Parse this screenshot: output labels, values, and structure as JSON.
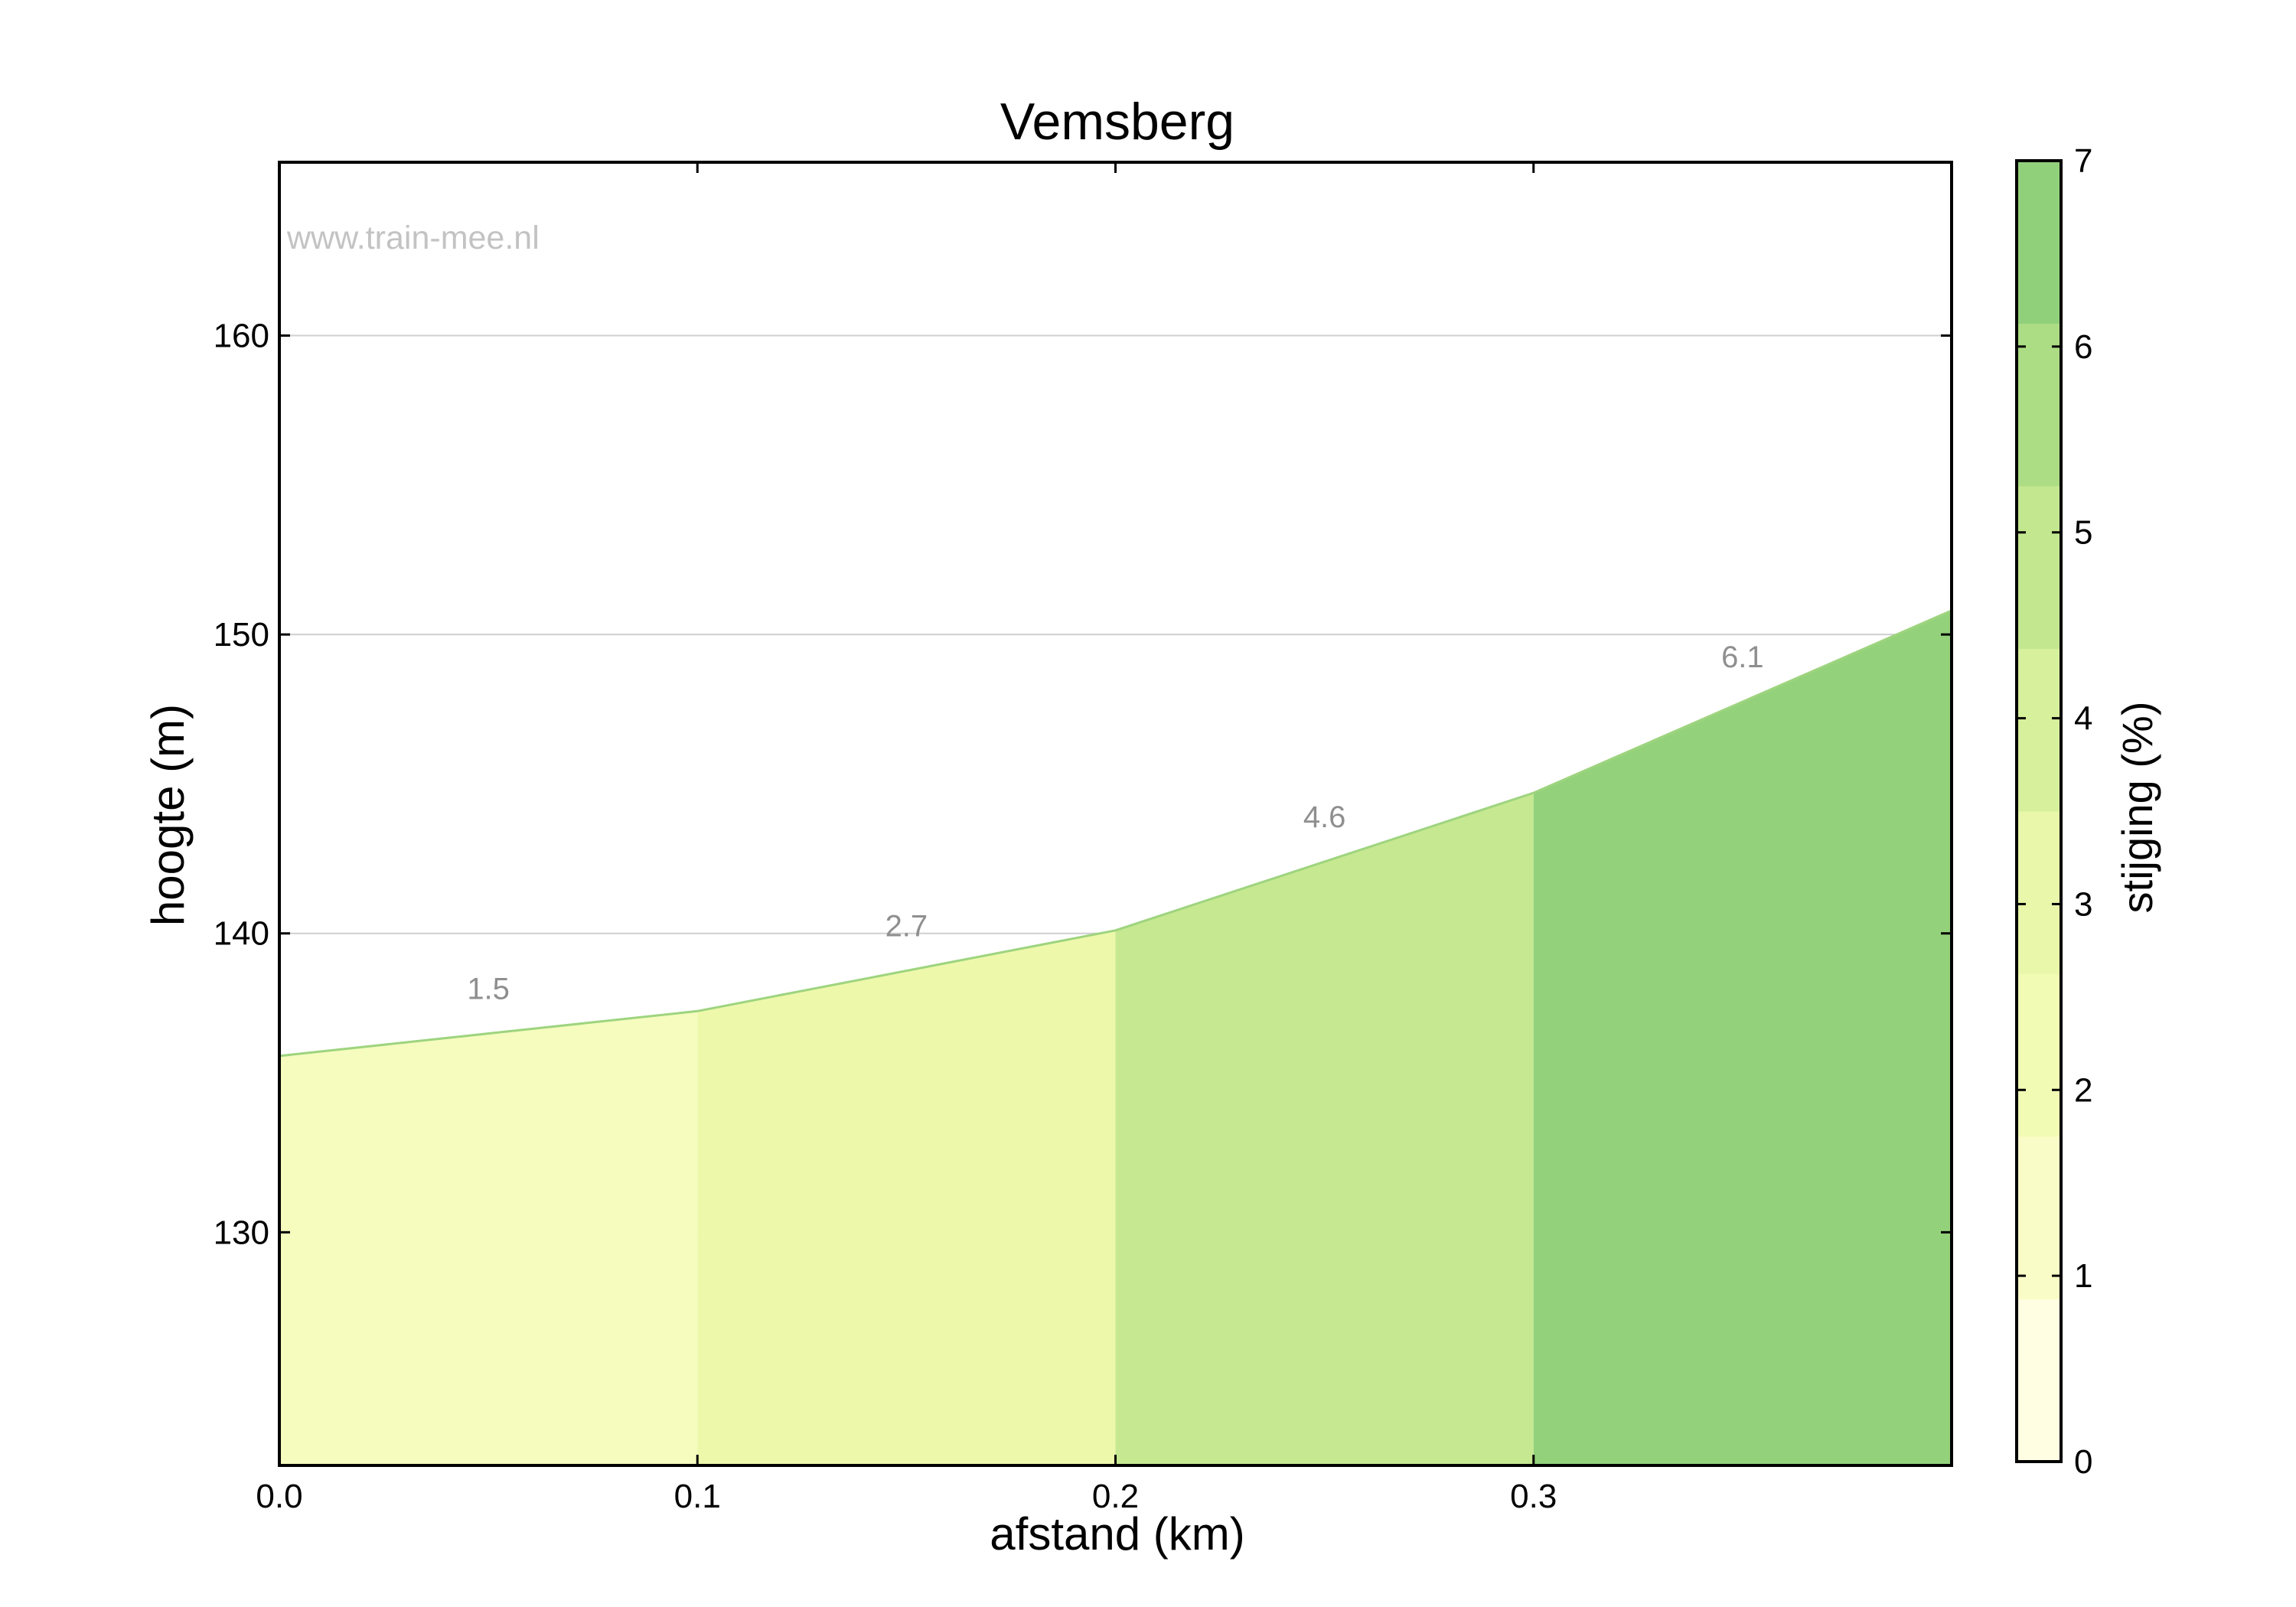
{
  "chart_data": {
    "type": "area",
    "title": "Vemsberg",
    "watermark": "www.train-mee.nl",
    "xlabel": "afstand (km)",
    "ylabel": "hoogte (m)",
    "xlim": [
      0,
      0.4
    ],
    "ylim": [
      122.2,
      165.8
    ],
    "x_ticks": [
      "0.0",
      "0.1",
      "0.2",
      "0.3"
    ],
    "y_ticks": [
      "130",
      "140",
      "150",
      "160"
    ],
    "grid": "horizontal",
    "profile": {
      "x": [
        0.0,
        0.1,
        0.2,
        0.3,
        0.4
      ],
      "y": [
        135.9,
        137.4,
        140.1,
        144.7,
        150.8
      ]
    },
    "segments": [
      {
        "x_start": 0.0,
        "x_end": 0.1,
        "gradient_label": "1.5"
      },
      {
        "x_start": 0.1,
        "x_end": 0.2,
        "gradient_label": "2.7"
      },
      {
        "x_start": 0.2,
        "x_end": 0.3,
        "gradient_label": "4.6"
      },
      {
        "x_start": 0.3,
        "x_end": 0.4,
        "gradient_label": "6.1"
      }
    ],
    "colorbar": {
      "label": "stijging (%)",
      "range": [
        0,
        7
      ],
      "ticks": [
        "0",
        "1",
        "2",
        "3",
        "4",
        "5",
        "6",
        "7"
      ],
      "colors": [
        "#fffde2",
        "#f9fcc6",
        "#f1fbb4",
        "#e8f7a9",
        "#d7f09c",
        "#c3e78f",
        "#acdd84",
        "#91d07a"
      ]
    },
    "segment_colors": [
      "#f5fcbd",
      "#edf8ab",
      "#c6e891",
      "#93d27b"
    ],
    "line_color": "#9ed47f"
  }
}
